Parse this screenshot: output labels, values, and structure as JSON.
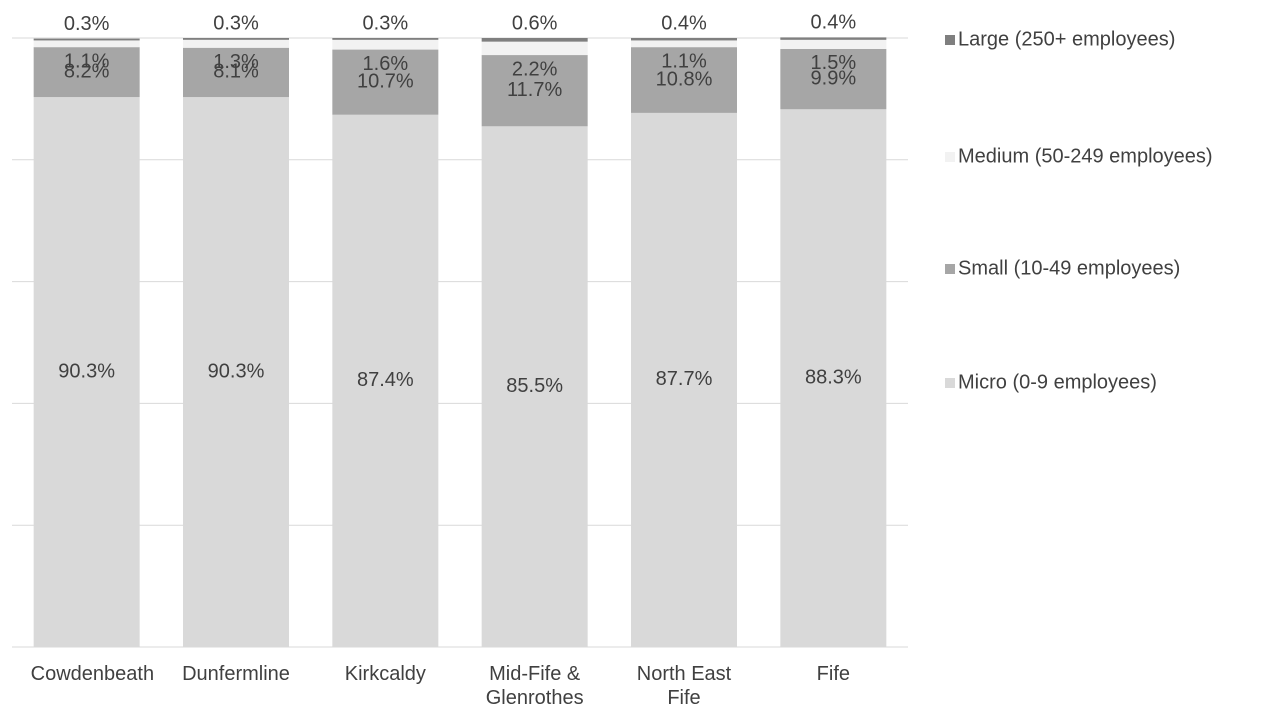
{
  "chart_data": {
    "type": "stacked-bar",
    "categories": [
      "Cowdenbeath",
      "Dunfermline",
      "Kirkcaldy",
      "Mid-Fife & Glenrothes",
      "North East Fife",
      "Fife"
    ],
    "series": [
      {
        "name": "Micro (0-9 employees)",
        "color": "#d9d9d9",
        "values": [
          90.3,
          90.3,
          87.4,
          85.5,
          87.7,
          88.3
        ],
        "value_labels": [
          "90.3%",
          "90.3%",
          "87.4%",
          "85.5%",
          "87.7%",
          "88.3%"
        ]
      },
      {
        "name": "Small (10-49 employees)",
        "color": "#a6a6a6",
        "values": [
          8.2,
          8.1,
          10.7,
          11.7,
          10.8,
          9.9
        ],
        "value_labels": [
          "8.2%",
          "8.1%",
          "10.7%",
          "11.7%",
          "10.8%",
          "9.9%"
        ]
      },
      {
        "name": "Medium (50-249 employees)",
        "color": "#f2f2f2",
        "values": [
          1.1,
          1.3,
          1.6,
          2.2,
          1.1,
          1.5
        ],
        "value_labels": [
          "1.1%",
          "1.3%",
          "1.6%",
          "2.2%",
          "1.1%",
          "1.5%"
        ]
      },
      {
        "name": "Large (250+ employees)",
        "color": "#7f7f7f",
        "values": [
          0.3,
          0.3,
          0.3,
          0.6,
          0.4,
          0.4
        ],
        "value_labels": [
          "0.3%",
          "0.3%",
          "0.3%",
          "0.6%",
          "0.4%",
          "0.4%"
        ]
      }
    ],
    "ylim": [
      0,
      100
    ],
    "yticks": [
      0,
      20,
      40,
      60,
      80,
      100
    ],
    "grid": true,
    "legend": "right"
  }
}
